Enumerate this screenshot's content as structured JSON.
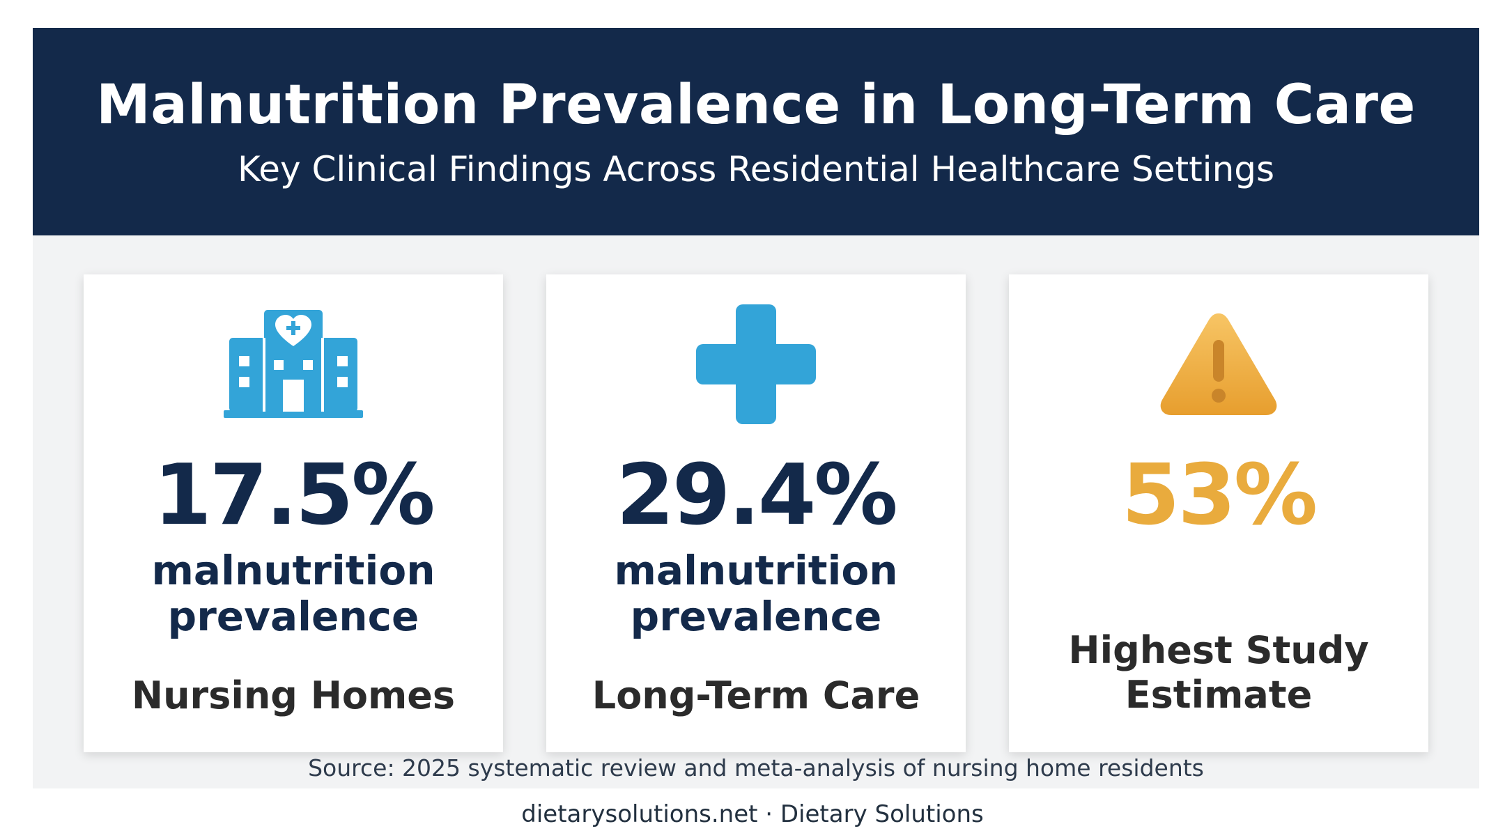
{
  "header": {
    "title": "Malnutrition Prevalence in Long-Term Care",
    "subtitle": "Key Clinical Findings Across Residential Healthcare Settings"
  },
  "cards": [
    {
      "icon": "hospital-building-icon",
      "value": "17.5%",
      "description_line1": "malnutrition",
      "description_line2": "prevalence",
      "setting": "Nursing Homes"
    },
    {
      "icon": "medical-cross-icon",
      "value": "29.4%",
      "description_line1": "malnutrition",
      "description_line2": "prevalence",
      "setting": "Long-Term Care"
    },
    {
      "icon": "warning-triangle-icon",
      "value": "53%",
      "setting_line1": "Highest Study",
      "setting_line2": "Estimate"
    }
  ],
  "source": "Source: 2025 systematic review and meta-analysis of nursing home residents",
  "footer": "dietarysolutions.net · Dietary Solutions",
  "colors": {
    "header_background": "#13294a",
    "primary_text": "#13294a",
    "icon_blue": "#33a4d8",
    "warning_amber": "#e9ab3d",
    "panel_background": "#f2f3f4"
  }
}
